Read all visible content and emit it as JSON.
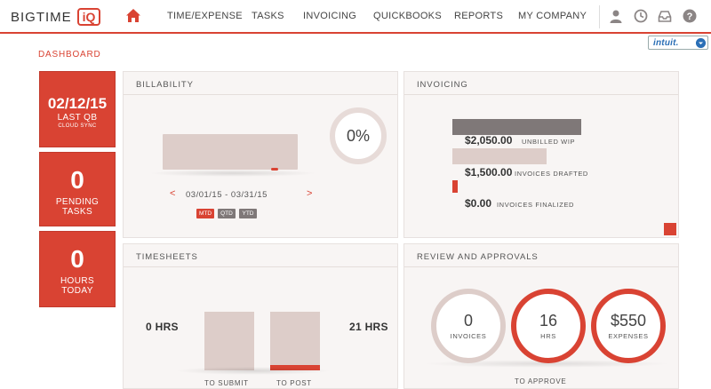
{
  "header": {
    "logo_text": "BIGTIME",
    "logo_badge": "iQ",
    "nav": [
      "TIME/EXPENSE",
      "TASKS",
      "INVOICING",
      "QUICKBOOKS",
      "REPORTS",
      "MY COMPANY"
    ],
    "intuit_label": "intuit."
  },
  "page_label": "DASHBOARD",
  "tiles": {
    "sync": {
      "value": "02/12/15",
      "label": "LAST QB",
      "sub": "CLOUD SYNC"
    },
    "tasks": {
      "value": "0",
      "label_1": "PENDING",
      "label_2": "TASKS"
    },
    "hours": {
      "value": "0",
      "label_1": "HOURS",
      "label_2": "TODAY"
    }
  },
  "billability": {
    "title": "BILLABILITY",
    "percent": "0%",
    "date_range": "03/01/15 - 03/31/15",
    "prev_arrow": "<",
    "next_arrow": ">",
    "periods": [
      "MTD",
      "QTD",
      "YTD"
    ]
  },
  "invoicing": {
    "title": "INVOICING",
    "rows": [
      {
        "amount": "$2,050.00",
        "label": "UNBILLED WIP",
        "fraction": 1.0
      },
      {
        "amount": "$1,500.00",
        "label": "INVOICES DRAFTED",
        "fraction": 0.73
      },
      {
        "amount": "$0.00",
        "label": "INVOICES FINALIZED",
        "fraction": 0.0
      }
    ]
  },
  "timesheets": {
    "title": "TIMESHEETS",
    "left_hrs": "0 HRS",
    "right_hrs": "21 HRS",
    "to_submit": "TO SUBMIT",
    "to_post": "TO POST"
  },
  "approvals": {
    "title": "REVIEW AND APPROVALS",
    "items": [
      {
        "value": "0",
        "label": "INVOICES"
      },
      {
        "value": "16",
        "label": "HRS"
      },
      {
        "value": "$550",
        "label": "EXPENSES"
      }
    ],
    "caption": "TO APPROVE"
  },
  "colors": {
    "accent": "#d94333",
    "bar_light": "#ddcdc9",
    "bar_dark": "#7f7878",
    "panel_bg": "#f8f5f4"
  }
}
